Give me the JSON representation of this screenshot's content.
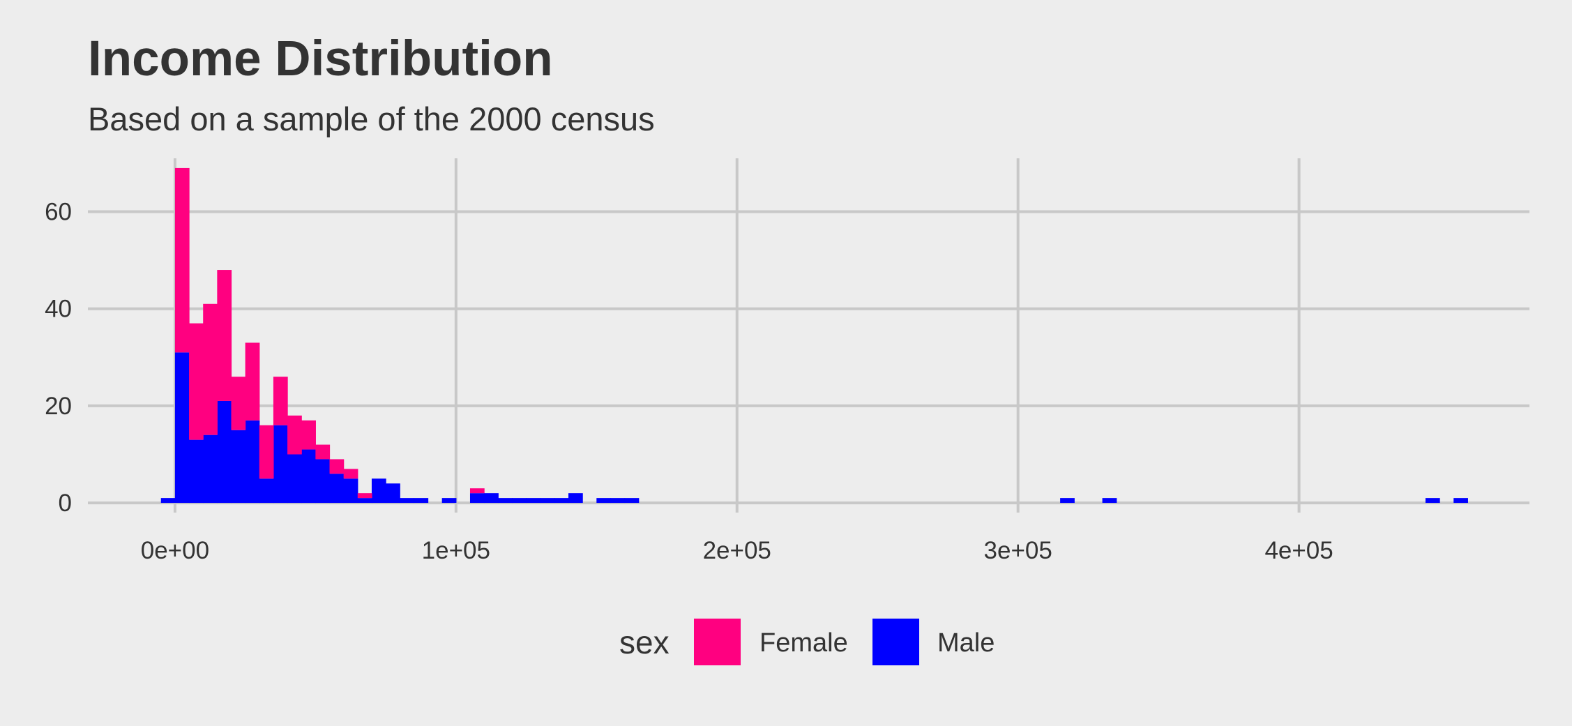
{
  "chart_data": {
    "type": "bar",
    "title": "Income Distribution",
    "subtitle": "Based on a sample of the 2000 census",
    "xlabel": "",
    "ylabel": "",
    "xlim": [
      -31000,
      482000
    ],
    "ylim": [
      -2,
      71
    ],
    "x_ticks": [
      0,
      100000,
      200000,
      300000,
      400000
    ],
    "x_tick_labels": [
      "0e+00",
      "1e+05",
      "2e+05",
      "3e+05",
      "4e+05"
    ],
    "y_ticks": [
      0,
      20,
      40,
      60
    ],
    "y_tick_labels": [
      "0",
      "20",
      "40",
      "60"
    ],
    "grid": true,
    "bin_width": 5000,
    "stacked": true,
    "legend": {
      "title": "sex",
      "placement": "bottom"
    },
    "colors": {
      "Female": "#FF0080",
      "Male": "#0000FF",
      "grid": "#C8C8C8",
      "background": "#EDEDED"
    },
    "series": [
      {
        "name": "Male",
        "bins": [
          [
            -5000,
            1
          ],
          [
            0,
            31
          ],
          [
            5000,
            13
          ],
          [
            10000,
            14
          ],
          [
            15000,
            21
          ],
          [
            20000,
            15
          ],
          [
            25000,
            17
          ],
          [
            30000,
            5
          ],
          [
            35000,
            16
          ],
          [
            40000,
            10
          ],
          [
            45000,
            11
          ],
          [
            50000,
            9
          ],
          [
            55000,
            6
          ],
          [
            60000,
            5
          ],
          [
            65000,
            1
          ],
          [
            70000,
            5
          ],
          [
            75000,
            4
          ],
          [
            80000,
            1
          ],
          [
            85000,
            1
          ],
          [
            95000,
            1
          ],
          [
            105000,
            2
          ],
          [
            110000,
            2
          ],
          [
            115000,
            1
          ],
          [
            120000,
            1
          ],
          [
            125000,
            1
          ],
          [
            130000,
            1
          ],
          [
            135000,
            1
          ],
          [
            140000,
            2
          ],
          [
            150000,
            1
          ],
          [
            155000,
            1
          ],
          [
            160000,
            1
          ],
          [
            315000,
            1
          ],
          [
            330000,
            1
          ],
          [
            445000,
            1
          ],
          [
            455000,
            1
          ]
        ]
      },
      {
        "name": "Female",
        "bins": [
          [
            0,
            38
          ],
          [
            5000,
            24
          ],
          [
            10000,
            27
          ],
          [
            15000,
            27
          ],
          [
            20000,
            11
          ],
          [
            25000,
            16
          ],
          [
            30000,
            11
          ],
          [
            35000,
            10
          ],
          [
            40000,
            8
          ],
          [
            45000,
            6
          ],
          [
            50000,
            3
          ],
          [
            55000,
            3
          ],
          [
            60000,
            2
          ],
          [
            65000,
            1
          ],
          [
            105000,
            1
          ]
        ]
      }
    ]
  }
}
